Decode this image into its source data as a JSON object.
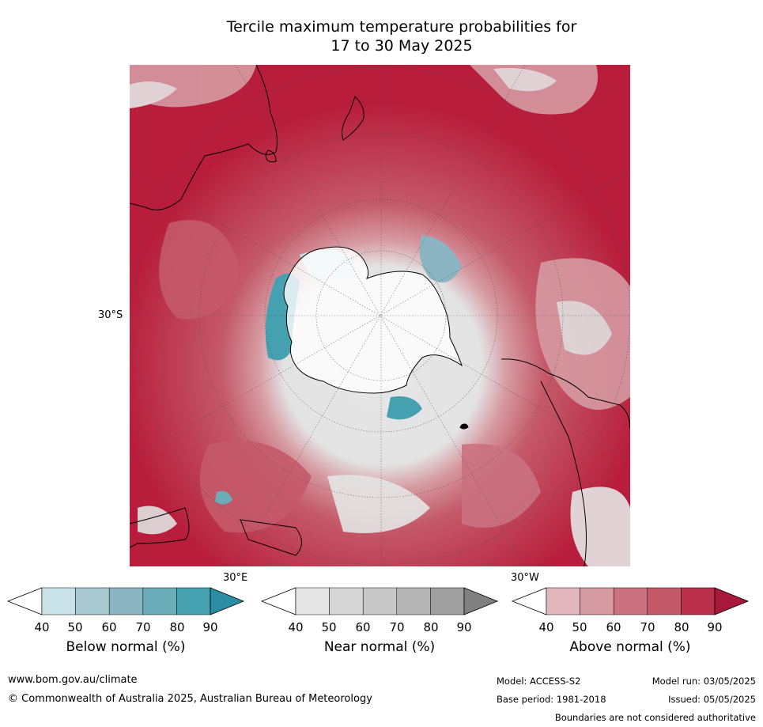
{
  "title_line1": "Tercile maximum temperature probabilities for",
  "title_line2": "17 to 30 May 2025",
  "map": {
    "projection": "south-polar stereographic",
    "lat_label": "30°S",
    "lon_label_east": "30°E",
    "lon_label_west": "30°W"
  },
  "colors": {
    "below": [
      "#ffffff",
      "#c9e2e8",
      "#a8c9cf",
      "#8bb5c2",
      "#6aacb8",
      "#45a1b0",
      "#2a8da3"
    ],
    "near": [
      "#ffffff",
      "#e5e5e5",
      "#d6d6d6",
      "#c7c7c7",
      "#b5b5b5",
      "#a0a0a0",
      "#808080"
    ],
    "above": [
      "#ffffff",
      "#e1b7bd",
      "#d69aa2",
      "#ca7280",
      "#c45a69",
      "#ba2f4a",
      "#a8183a"
    ]
  },
  "colorbars": [
    {
      "title": "Below normal (%)",
      "ticks": [
        "40",
        "50",
        "60",
        "70",
        "80",
        "90"
      ]
    },
    {
      "title": "Near normal (%)",
      "ticks": [
        "40",
        "50",
        "60",
        "70",
        "80",
        "90"
      ]
    },
    {
      "title": "Above normal (%)",
      "ticks": [
        "40",
        "50",
        "60",
        "70",
        "80",
        "90"
      ]
    }
  ],
  "footer": {
    "website": "www.bom.gov.au/climate",
    "copyright": "© Commonwealth of Australia 2025, Australian Bureau of Meteorology",
    "model": "Model: ACCESS-S2",
    "base_period": "Base period: 1981-2018",
    "model_run": "Model run: 03/05/2025",
    "issued": "Issued: 05/05/2025",
    "disclaimer": "Boundaries are not considered authoritative"
  }
}
